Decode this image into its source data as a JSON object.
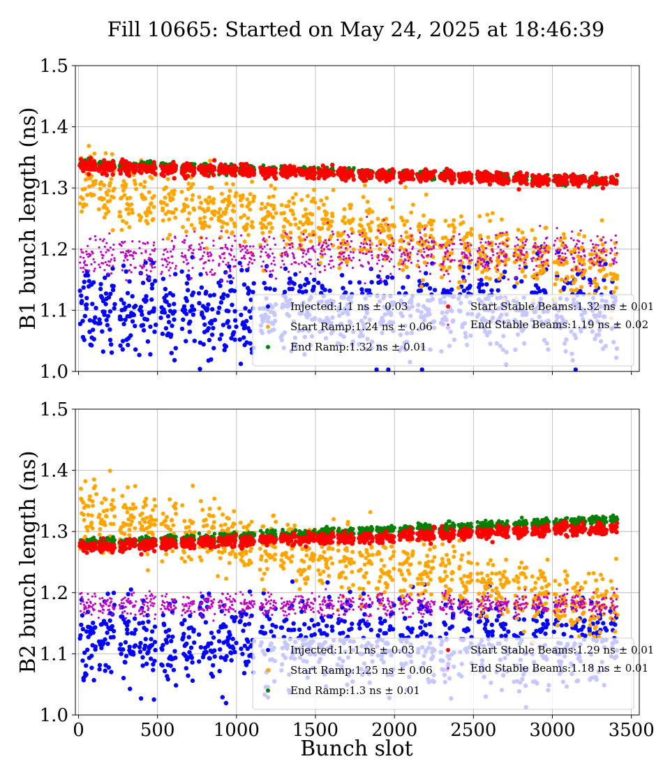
{
  "chart_data": {
    "title": "Fill 10665: Started on May 24, 2025 at 18:46:39",
    "xlabel": "Bunch slot",
    "xlim": [
      -20,
      3550
    ],
    "x_ticks": [
      0,
      500,
      1000,
      1500,
      2000,
      2500,
      3000,
      3500
    ],
    "grid": true,
    "panels": [
      {
        "type": "scatter",
        "ylabel": "B1 bunch length (ns)",
        "ylim": [
          1.0,
          1.5
        ],
        "y_ticks": [
          1.0,
          1.1,
          1.2,
          1.3,
          1.4,
          1.5
        ],
        "legend_position": "lower-right",
        "series": [
          {
            "name": "Injected",
            "legend": "Injected:1.1 ns ± 0.03",
            "color": "#0000ff",
            "mean": 1.1,
            "std": 0.03
          },
          {
            "name": "Start Ramp",
            "legend": "Start Ramp:1.24 ns ± 0.06",
            "color": "#ffa500",
            "mean": 1.24,
            "std": 0.06
          },
          {
            "name": "End Ramp",
            "legend": "End Ramp:1.32 ns ± 0.01",
            "color": "#008000",
            "mean": 1.32,
            "std": 0.01
          },
          {
            "name": "Start Stable Beams",
            "legend": "Start Stable Beams:1.32 ns ± 0.01",
            "color": "#ff0000",
            "mean": 1.32,
            "std": 0.01
          },
          {
            "name": "End Stable Beams",
            "legend": "End Stable Beams:1.19 ns ± 0.02",
            "color": "#bf00bf",
            "mean": 1.19,
            "std": 0.02
          }
        ]
      },
      {
        "type": "scatter",
        "ylabel": "B2 bunch length (ns)",
        "ylim": [
          1.0,
          1.5
        ],
        "y_ticks": [
          1.0,
          1.1,
          1.2,
          1.3,
          1.4,
          1.5
        ],
        "legend_position": "lower-right",
        "series": [
          {
            "name": "Injected",
            "legend": "Injected:1.11 ns ± 0.03",
            "color": "#0000ff",
            "mean": 1.11,
            "std": 0.03
          },
          {
            "name": "Start Ramp",
            "legend": "Start Ramp:1.25 ns ± 0.06",
            "color": "#ffa500",
            "mean": 1.25,
            "std": 0.06
          },
          {
            "name": "End Ramp",
            "legend": "End Ramp:1.3 ns ± 0.01",
            "color": "#008000",
            "mean": 1.3,
            "std": 0.01
          },
          {
            "name": "Start Stable Beams",
            "legend": "Start Stable Beams:1.29 ns ± 0.01",
            "color": "#ff0000",
            "mean": 1.29,
            "std": 0.01
          },
          {
            "name": "End Stable Beams",
            "legend": "End Stable Beams:1.18 ns ± 0.01",
            "color": "#bf00bf",
            "mean": 1.18,
            "std": 0.01
          }
        ]
      }
    ]
  }
}
